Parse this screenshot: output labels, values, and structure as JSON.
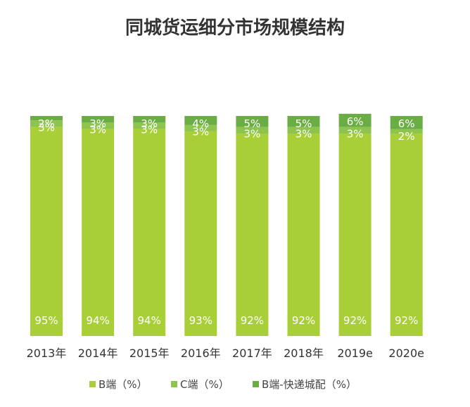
{
  "chart_data": {
    "type": "bar",
    "stacked": true,
    "normalized": true,
    "title": "同城货运细分市场规模结构",
    "categories": [
      "2013年",
      "2014年",
      "2015年",
      "2016年",
      "2017年",
      "2018年",
      "2019e",
      "2020e"
    ],
    "series": [
      {
        "name": "B端（%）",
        "values": [
          95,
          94,
          94,
          93,
          92,
          92,
          92,
          92
        ],
        "labels": [
          "95%",
          "94%",
          "94%",
          "93%",
          "92%",
          "92%",
          "92%",
          "92%"
        ],
        "color": "#a9cf38"
      },
      {
        "name": "C端（%）",
        "values": [
          3,
          3,
          3,
          3,
          3,
          3,
          3,
          2
        ],
        "labels": [
          "3%",
          "3%",
          "3%",
          "3%",
          "3%",
          "3%",
          "3%",
          "2%"
        ],
        "color": "#8dc44e"
      },
      {
        "name": "B端-快递城配（%）",
        "values": [
          2,
          3,
          3,
          4,
          5,
          5,
          6,
          6
        ],
        "labels": [
          "2%",
          "3%",
          "3%",
          "4%",
          "5%",
          "5%",
          "6%",
          "6%"
        ],
        "color": "#6aad45"
      }
    ],
    "ylim": [
      0,
      100
    ],
    "legend_position": "bottom",
    "grid": false
  }
}
